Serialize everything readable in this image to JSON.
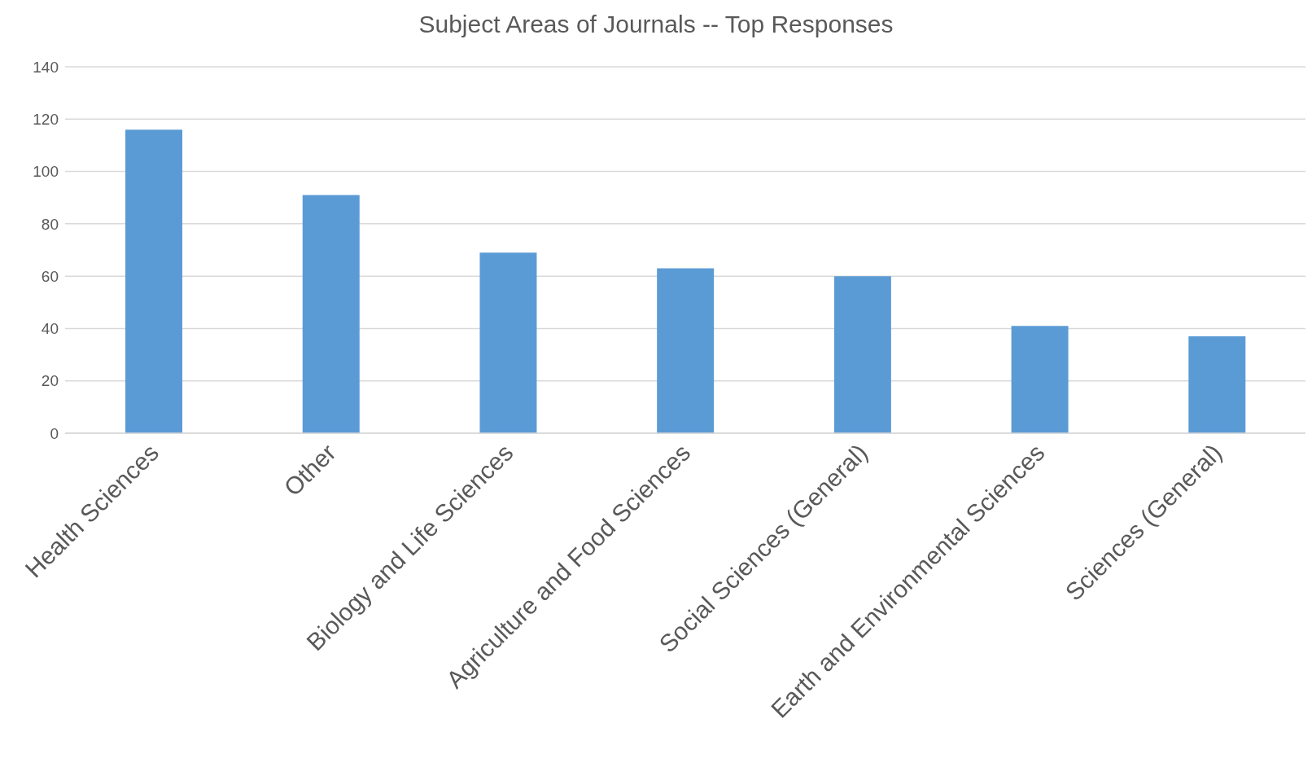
{
  "chart_data": {
    "type": "bar",
    "title": "Subject Areas of Journals -- Top Responses",
    "categories": [
      "Health Sciences",
      "Other",
      "Biology and Life Sciences",
      "Agriculture and Food Sciences",
      "Social Sciences (General)",
      "Earth and Environmental Sciences",
      "Sciences (General)"
    ],
    "values": [
      116,
      91,
      69,
      63,
      60,
      41,
      37
    ],
    "color": "#5b9bd5",
    "ylim": [
      0,
      140
    ],
    "yticks": [
      0,
      20,
      40,
      60,
      80,
      100,
      120,
      140
    ],
    "grid": "y",
    "legend": false
  }
}
